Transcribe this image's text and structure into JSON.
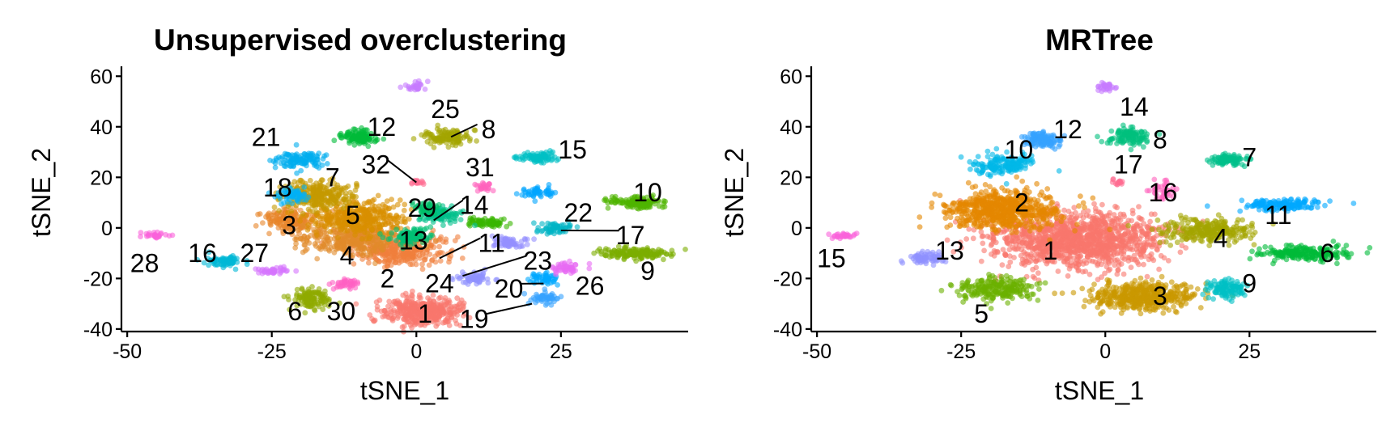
{
  "chart_data": [
    {
      "type": "scatter",
      "title": "Unsupervised overclustering",
      "xlabel": "tSNE_1",
      "ylabel": "tSNE_2",
      "xlim": [
        -51,
        47
      ],
      "ylim": [
        -41,
        62
      ],
      "xticks": [
        -50,
        -25,
        0,
        25
      ],
      "xtick_labels": [
        "-50",
        "-25",
        "0",
        "25"
      ],
      "yticks": [
        -40,
        -20,
        0,
        20,
        40,
        60
      ],
      "ytick_labels": [
        "-40",
        "-20",
        "0",
        "20",
        "40",
        "60"
      ],
      "grid": false,
      "legend": "none",
      "clusters": [
        {
          "id": "1",
          "color": "#F8766D",
          "cx": 1,
          "cy": -33,
          "rx": 6,
          "ry": 5,
          "n": 420,
          "label_x": 1.5,
          "label_y": -34,
          "line_to": null
        },
        {
          "id": "2",
          "color": "#F07E3C",
          "cx": -3,
          "cy": -9,
          "rx": 7,
          "ry": 5,
          "n": 320,
          "label_x": -5,
          "label_y": -20,
          "line_to": null
        },
        {
          "id": "3",
          "color": "#E8852A",
          "cx": -22,
          "cy": 3,
          "rx": 4,
          "ry": 4,
          "n": 180,
          "label_x": -22,
          "label_y": 1,
          "line_to": null
        },
        {
          "id": "4",
          "color": "#E18A2A",
          "cx": -11,
          "cy": -4,
          "rx": 8,
          "ry": 6,
          "n": 380,
          "label_x": -12,
          "label_y": -11,
          "line_to": null
        },
        {
          "id": "5",
          "color": "#D89000",
          "cx": -10,
          "cy": 4,
          "rx": 7,
          "ry": 6,
          "n": 380,
          "label_x": -11,
          "label_y": 5,
          "line_to": null
        },
        {
          "id": "6",
          "color": "#8FAA00",
          "cx": -18,
          "cy": -28,
          "rx": 3,
          "ry": 4,
          "n": 120,
          "label_x": -21,
          "label_y": -33,
          "line_to": null
        },
        {
          "id": "7",
          "color": "#C49A00",
          "cx": -17,
          "cy": 13,
          "rx": 6,
          "ry": 5,
          "n": 260,
          "label_x": -14.5,
          "label_y": 20,
          "line_to": null
        },
        {
          "id": "8",
          "color": "#A3A500",
          "cx": 5,
          "cy": 36,
          "rx": 3.5,
          "ry": 3,
          "n": 120,
          "label_x": 12.5,
          "label_y": 39,
          "line_to": [
            6,
            36
          ]
        },
        {
          "id": "9",
          "color": "#7CAE00",
          "cx": 38,
          "cy": -10,
          "rx": 6,
          "ry": 2,
          "n": 160,
          "label_x": 40,
          "label_y": -17,
          "line_to": null
        },
        {
          "id": "10",
          "color": "#4FB400",
          "cx": 38,
          "cy": 10,
          "rx": 5,
          "ry": 2,
          "n": 140,
          "label_x": 40,
          "label_y": 14,
          "line_to": null
        },
        {
          "id": "11",
          "color": "#39B600",
          "cx": 12,
          "cy": 2,
          "rx": 3,
          "ry": 2,
          "n": 70,
          "label_x": 13,
          "label_y": -6,
          "line_to": [
            4,
            -12
          ]
        },
        {
          "id": "12",
          "color": "#00BA38",
          "cx": -10,
          "cy": 36,
          "rx": 3,
          "ry": 2.5,
          "n": 110,
          "label_x": -6,
          "label_y": 40,
          "line_to": null
        },
        {
          "id": "13",
          "color": "#00BF74",
          "cx": -1,
          "cy": -3,
          "rx": 3,
          "ry": 3,
          "n": 110,
          "label_x": -0.5,
          "label_y": -5,
          "line_to": null
        },
        {
          "id": "14",
          "color": "#00C08B",
          "cx": 4,
          "cy": 5,
          "rx": 3,
          "ry": 3,
          "n": 110,
          "label_x": 10,
          "label_y": 9,
          "line_to": [
            3,
            3
          ]
        },
        {
          "id": "15",
          "color": "#00BFC4",
          "cx": 21,
          "cy": 28,
          "rx": 3,
          "ry": 2,
          "n": 80,
          "label_x": 27,
          "label_y": 31,
          "line_to": null
        },
        {
          "id": "16",
          "color": "#00B8D5",
          "cx": -33,
          "cy": -13,
          "rx": 3,
          "ry": 2,
          "n": 70,
          "label_x": -37,
          "label_y": -10,
          "line_to": null
        },
        {
          "id": "17",
          "color": "#00B4C4",
          "cx": 24,
          "cy": 0,
          "rx": 3,
          "ry": 2,
          "n": 60,
          "label_x": 37,
          "label_y": -3,
          "line_to": [
            25,
            -1
          ]
        },
        {
          "id": "18",
          "color": "#00B0F6",
          "cx": -22,
          "cy": 13,
          "rx": 2.5,
          "ry": 2.5,
          "n": 60,
          "label_x": -24,
          "label_y": 16,
          "line_to": null
        },
        {
          "id": "19",
          "color": "#35A2FF",
          "cx": 22,
          "cy": -28,
          "rx": 2.5,
          "ry": 2,
          "n": 50,
          "label_x": 10,
          "label_y": -36,
          "line_to": [
            20,
            -30
          ]
        },
        {
          "id": "20",
          "color": "#00A9FF",
          "cx": 22,
          "cy": -20,
          "rx": 2.5,
          "ry": 2,
          "n": 50,
          "label_x": 16,
          "label_y": -24,
          "line_to": [
            22,
            -22
          ]
        },
        {
          "id": "21",
          "color": "#00AEEF",
          "cx": -20,
          "cy": 27,
          "rx": 4,
          "ry": 3,
          "n": 110,
          "label_x": -26,
          "label_y": 36,
          "line_to": null
        },
        {
          "id": "22",
          "color": "#00A5FF",
          "cx": 21,
          "cy": 14,
          "rx": 2.5,
          "ry": 2,
          "n": 50,
          "label_x": 28,
          "label_y": 6,
          "line_to": null
        },
        {
          "id": "23",
          "color": "#9590FF",
          "cx": 16,
          "cy": -6,
          "rx": 3,
          "ry": 2,
          "n": 60,
          "label_x": 21,
          "label_y": -13,
          "line_to": [
            8,
            -19
          ]
        },
        {
          "id": "24",
          "color": "#8F91FF",
          "cx": 10,
          "cy": -20,
          "rx": 3,
          "ry": 2,
          "n": 60,
          "label_x": 4,
          "label_y": -22,
          "line_to": null
        },
        {
          "id": "25",
          "color": "#C77CFF",
          "cx": 0,
          "cy": 56,
          "rx": 1.5,
          "ry": 1.5,
          "n": 30,
          "label_x": 5,
          "label_y": 47,
          "line_to": null
        },
        {
          "id": "26",
          "color": "#E76BF3",
          "cx": 26,
          "cy": -16,
          "rx": 3,
          "ry": 2,
          "n": 50,
          "label_x": 30,
          "label_y": -23,
          "line_to": null
        },
        {
          "id": "27",
          "color": "#D575FE",
          "cx": -25,
          "cy": -17,
          "rx": 3,
          "ry": 1.5,
          "n": 40,
          "label_x": -28,
          "label_y": -10,
          "line_to": null
        },
        {
          "id": "28",
          "color": "#FA62DB",
          "cx": -45,
          "cy": -3,
          "rx": 2,
          "ry": 1,
          "n": 30,
          "label_x": -47,
          "label_y": -14,
          "line_to": null
        },
        {
          "id": "29",
          "color": "#00BE67",
          "cx": 2,
          "cy": 8,
          "rx": 2,
          "ry": 2,
          "n": 40,
          "label_x": 1,
          "label_y": 8,
          "line_to": null
        },
        {
          "id": "30",
          "color": "#FF61C3",
          "cx": -12,
          "cy": -22,
          "rx": 2,
          "ry": 2,
          "n": 40,
          "label_x": -13,
          "label_y": -33,
          "line_to": null
        },
        {
          "id": "31",
          "color": "#FF62BC",
          "cx": 12,
          "cy": 16,
          "rx": 1.5,
          "ry": 1.5,
          "n": 25,
          "label_x": 11,
          "label_y": 24,
          "line_to": null
        },
        {
          "id": "32",
          "color": "#FF6C91",
          "cx": 0,
          "cy": 18,
          "rx": 1,
          "ry": 1,
          "n": 15,
          "label_x": -7,
          "label_y": 25,
          "line_to": [
            0,
            18
          ]
        }
      ]
    },
    {
      "type": "scatter",
      "title": "MRTree",
      "xlabel": "tSNE_1",
      "ylabel": "tSNE_2",
      "xlim": [
        -51,
        47
      ],
      "ylim": [
        -41,
        62
      ],
      "xticks": [
        -50,
        -25,
        0,
        25
      ],
      "xtick_labels": [
        "-50",
        "-25",
        "0",
        "25"
      ],
      "yticks": [
        -40,
        -20,
        0,
        20,
        40,
        60
      ],
      "ytick_labels": [
        "-40",
        "-20",
        "0",
        "20",
        "40",
        "60"
      ],
      "grid": false,
      "legend": "none",
      "clusters": [
        {
          "id": "1",
          "color": "#F8766D",
          "cx": -5,
          "cy": -5,
          "rx": 14,
          "ry": 10,
          "n": 1200,
          "label_x": -9.5,
          "label_y": -9,
          "line_to": null
        },
        {
          "id": "2",
          "color": "#E58700",
          "cx": -18,
          "cy": 7,
          "rx": 9,
          "ry": 7,
          "n": 650,
          "label_x": -14.5,
          "label_y": 10,
          "line_to": null
        },
        {
          "id": "3",
          "color": "#C99800",
          "cx": 6,
          "cy": -27,
          "rx": 8,
          "ry": 5,
          "n": 450,
          "label_x": 9.5,
          "label_y": -27,
          "line_to": null
        },
        {
          "id": "4",
          "color": "#A3A500",
          "cx": 18,
          "cy": -1,
          "rx": 7,
          "ry": 4,
          "n": 250,
          "label_x": 20,
          "label_y": -4,
          "line_to": null
        },
        {
          "id": "5",
          "color": "#6BB100",
          "cx": -19,
          "cy": -24,
          "rx": 6,
          "ry": 4,
          "n": 220,
          "label_x": -21.5,
          "label_y": -34,
          "line_to": null
        },
        {
          "id": "6",
          "color": "#00BA38",
          "cx": 35,
          "cy": -10,
          "rx": 7,
          "ry": 2.5,
          "n": 200,
          "label_x": 38.5,
          "label_y": -10,
          "line_to": null
        },
        {
          "id": "7",
          "color": "#00C08B",
          "cx": 21,
          "cy": 27,
          "rx": 3,
          "ry": 2,
          "n": 90,
          "label_x": 25,
          "label_y": 28,
          "line_to": null
        },
        {
          "id": "8",
          "color": "#00BF7D",
          "cx": 4,
          "cy": 36,
          "rx": 3,
          "ry": 3,
          "n": 110,
          "label_x": 9.5,
          "label_y": 35,
          "line_to": null
        },
        {
          "id": "9",
          "color": "#00BFC4",
          "cx": 21,
          "cy": -24,
          "rx": 3,
          "ry": 4,
          "n": 110,
          "label_x": 25,
          "label_y": -22,
          "line_to": null
        },
        {
          "id": "10",
          "color": "#00B8E7",
          "cx": -18,
          "cy": 25,
          "rx": 5,
          "ry": 4,
          "n": 160,
          "label_x": -15,
          "label_y": 31,
          "line_to": null
        },
        {
          "id": "11",
          "color": "#00A9FF",
          "cx": 31,
          "cy": 9,
          "rx": 6,
          "ry": 2,
          "n": 150,
          "label_x": 30,
          "label_y": 5,
          "line_to": null
        },
        {
          "id": "12",
          "color": "#35A2FF",
          "cx": -11,
          "cy": 35,
          "rx": 3,
          "ry": 2.5,
          "n": 110,
          "label_x": -6.5,
          "label_y": 39,
          "line_to": null
        },
        {
          "id": "13",
          "color": "#8F91FF",
          "cx": -31,
          "cy": -12,
          "rx": 3,
          "ry": 2,
          "n": 70,
          "label_x": -27,
          "label_y": -9,
          "line_to": null
        },
        {
          "id": "14",
          "color": "#C77CFF",
          "cx": 0,
          "cy": 56,
          "rx": 1.5,
          "ry": 1.5,
          "n": 30,
          "label_x": 5,
          "label_y": 48,
          "line_to": null
        },
        {
          "id": "15",
          "color": "#FA62DB",
          "cx": -46,
          "cy": -3,
          "rx": 2,
          "ry": 1,
          "n": 30,
          "label_x": -47.5,
          "label_y": -12,
          "line_to": null
        },
        {
          "id": "16",
          "color": "#FF62BC",
          "cx": 10,
          "cy": 15,
          "rx": 2,
          "ry": 3,
          "n": 40,
          "label_x": 10,
          "label_y": 14,
          "line_to": null
        },
        {
          "id": "17",
          "color": "#FF6C91",
          "cx": 2,
          "cy": 18,
          "rx": 1,
          "ry": 1,
          "n": 15,
          "label_x": 4,
          "label_y": 25,
          "line_to": null
        }
      ]
    }
  ]
}
